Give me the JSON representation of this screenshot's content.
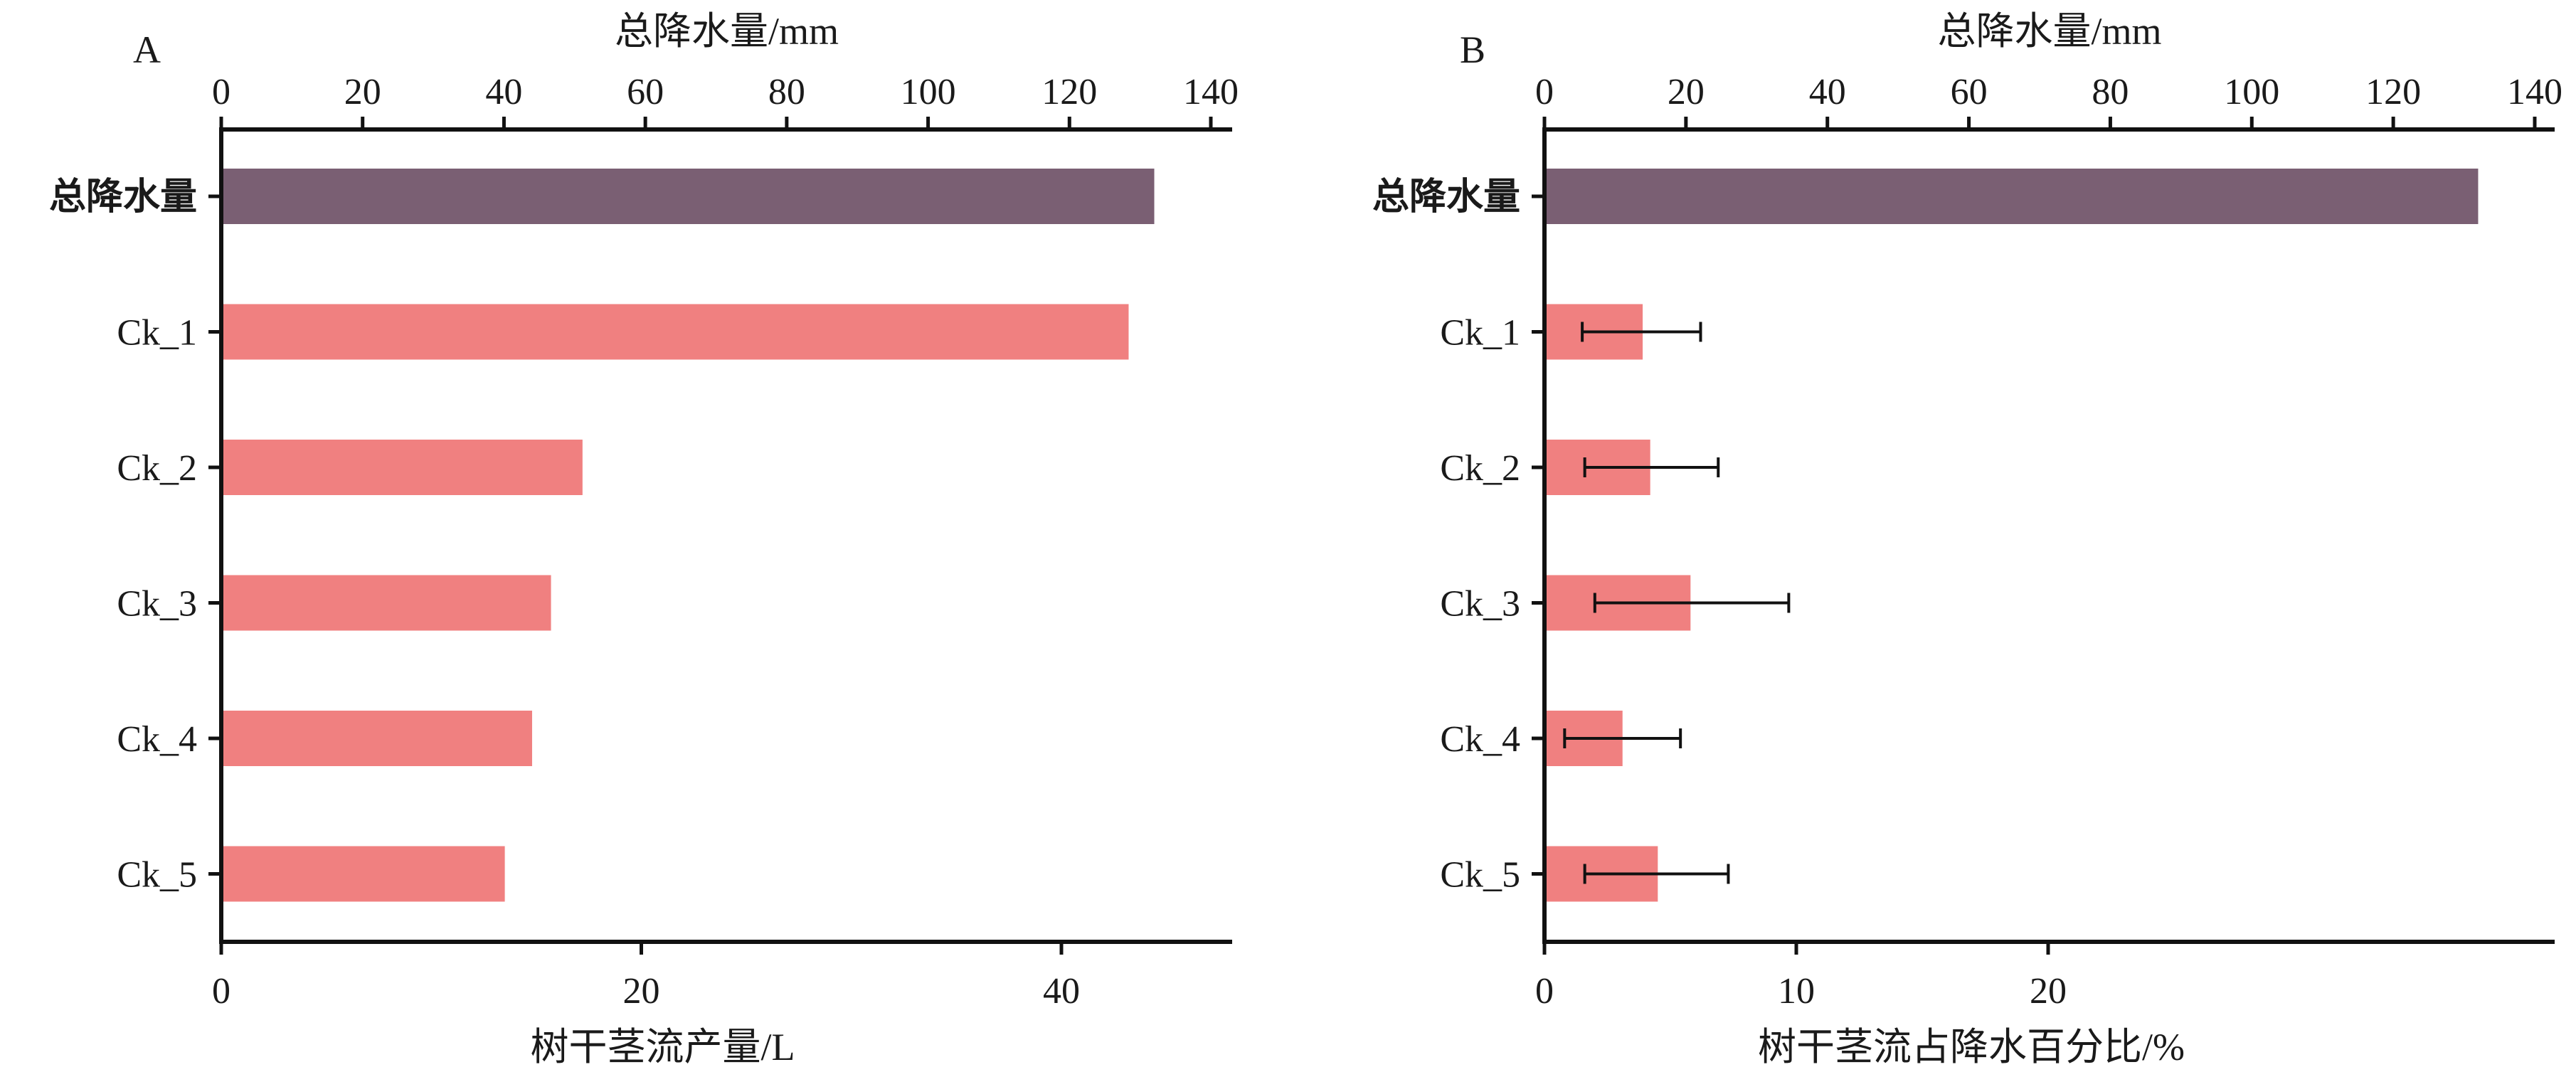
{
  "chart_data": [
    {
      "panel_label": "A",
      "type": "bar",
      "orientation": "horizontal",
      "top_axis": {
        "label": "总降水量/mm",
        "lim": [
          0,
          145
        ],
        "ticks": [
          0,
          20,
          40,
          60,
          80,
          100,
          120,
          140
        ]
      },
      "bottom_axis": {
        "label": "树干茎流产量/L",
        "lim": [
          0,
          48
        ],
        "ticks": [
          0,
          20,
          40
        ]
      },
      "categories": [
        "总降水量",
        "Ck_1",
        "Ck_2",
        "Ck_3",
        "Ck_4",
        "Ck_5"
      ],
      "bars": [
        {
          "category": "总降水量",
          "axis": "top",
          "value": 132,
          "color": "#7a5f73"
        },
        {
          "category": "Ck_1",
          "axis": "bottom",
          "value": 43.2,
          "color": "#f08080"
        },
        {
          "category": "Ck_2",
          "axis": "bottom",
          "value": 17.2,
          "color": "#f08080"
        },
        {
          "category": "Ck_3",
          "axis": "bottom",
          "value": 15.7,
          "color": "#f08080"
        },
        {
          "category": "Ck_4",
          "axis": "bottom",
          "value": 14.8,
          "color": "#f08080"
        },
        {
          "category": "Ck_5",
          "axis": "bottom",
          "value": 13.5,
          "color": "#f08080"
        }
      ],
      "grid": false,
      "legend": "none"
    },
    {
      "panel_label": "B",
      "type": "bar",
      "orientation": "horizontal",
      "top_axis": {
        "label": "总降水量/mm",
        "lim": [
          0,
          145
        ],
        "ticks": [
          0,
          20,
          40,
          60,
          80,
          100,
          120,
          140
        ]
      },
      "bottom_axis": {
        "label": "树干茎流占降水百分比/%",
        "lim": [
          0,
          25
        ],
        "ticks": [
          0,
          10,
          20
        ]
      },
      "categories": [
        "总降水量",
        "Ck_1",
        "Ck_2",
        "Ck_3",
        "Ck_4",
        "Ck_5"
      ],
      "bars": [
        {
          "category": "总降水量",
          "axis": "top",
          "value": 132,
          "color": "#7a5f73"
        },
        {
          "category": "Ck_1",
          "axis": "bottom",
          "value": 3.9,
          "error": [
            1.5,
            6.2
          ],
          "color": "#f08080"
        },
        {
          "category": "Ck_2",
          "axis": "bottom",
          "value": 4.2,
          "error": [
            1.6,
            6.9
          ],
          "color": "#f08080"
        },
        {
          "category": "Ck_3",
          "axis": "bottom",
          "value": 5.8,
          "error": [
            2.0,
            9.7
          ],
          "color": "#f08080"
        },
        {
          "category": "Ck_4",
          "axis": "bottom",
          "value": 3.1,
          "error": [
            0.8,
            5.4
          ],
          "color": "#f08080"
        },
        {
          "category": "Ck_5",
          "axis": "bottom",
          "value": 4.5,
          "error": [
            1.6,
            7.3
          ],
          "color": "#f08080"
        }
      ],
      "grid": false,
      "legend": "none"
    }
  ]
}
